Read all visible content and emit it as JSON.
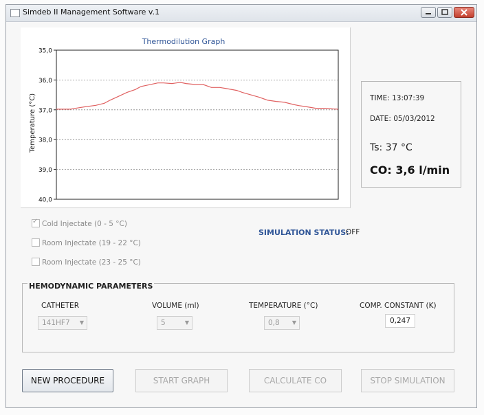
{
  "window": {
    "title": "Simdeb II Management Software v.1"
  },
  "chart_data": {
    "type": "line",
    "title": "Thermodilution Graph",
    "ylabel": "Temperature (°C)",
    "xlabel": "",
    "ylim": [
      35.0,
      40.0
    ],
    "y_inverted": true,
    "y_ticks": [
      "35,0",
      "36,0",
      "37,0",
      "38,0",
      "39,0",
      "40,0"
    ],
    "grid": "horizontal dashed",
    "line_color": "#e06060",
    "series": [
      {
        "x": [
          0,
          5,
          8,
          10,
          14,
          17,
          19,
          22,
          25,
          28,
          30,
          33,
          36,
          38,
          41,
          44,
          46,
          49,
          52,
          55,
          58,
          61,
          64,
          66,
          69,
          72,
          75,
          78,
          81,
          84,
          86,
          89,
          92,
          95,
          98,
          100
        ],
        "y": [
          36.98,
          36.98,
          36.93,
          36.9,
          36.85,
          36.78,
          36.68,
          36.55,
          36.42,
          36.32,
          36.22,
          36.16,
          36.1,
          36.1,
          36.12,
          36.08,
          36.12,
          36.15,
          36.15,
          36.25,
          36.25,
          36.3,
          36.35,
          36.42,
          36.5,
          36.58,
          36.68,
          36.72,
          36.75,
          36.82,
          36.86,
          36.9,
          36.95,
          36.95,
          36.97,
          36.98
        ]
      }
    ]
  },
  "info": {
    "time": "TIME: 13:07:39",
    "date": "DATE: 05/03/2012",
    "ts": "Ts: 37 °C",
    "co": "CO:  3,6 l/min"
  },
  "injectates": [
    {
      "label": "Cold Injectate (0 - 5 °C)",
      "checked": true
    },
    {
      "label": "Room Injectate (19 - 22 °C)",
      "checked": false
    },
    {
      "label": "Room Injectate (23 - 25 °C)",
      "checked": false
    }
  ],
  "simulation": {
    "label": "SIMULATION STATUS:",
    "value": "OFF"
  },
  "params": {
    "title": "HEMODYNAMIC PARAMETERS",
    "catheter_label": "CATHETER",
    "catheter_value": "141HF7",
    "volume_label": "VOLUME (ml)",
    "volume_value": "5",
    "temperature_label": "TEMPERATURE (°C)",
    "temperature_value": "0,8",
    "k_label": "COMP. CONSTANT (K)",
    "k_value": "0,247"
  },
  "buttons": {
    "new_procedure": "NEW PROCEDURE",
    "start_graph": "START GRAPH",
    "calculate_co": "CALCULATE CO",
    "stop_simulation": "STOP SIMULATION"
  }
}
